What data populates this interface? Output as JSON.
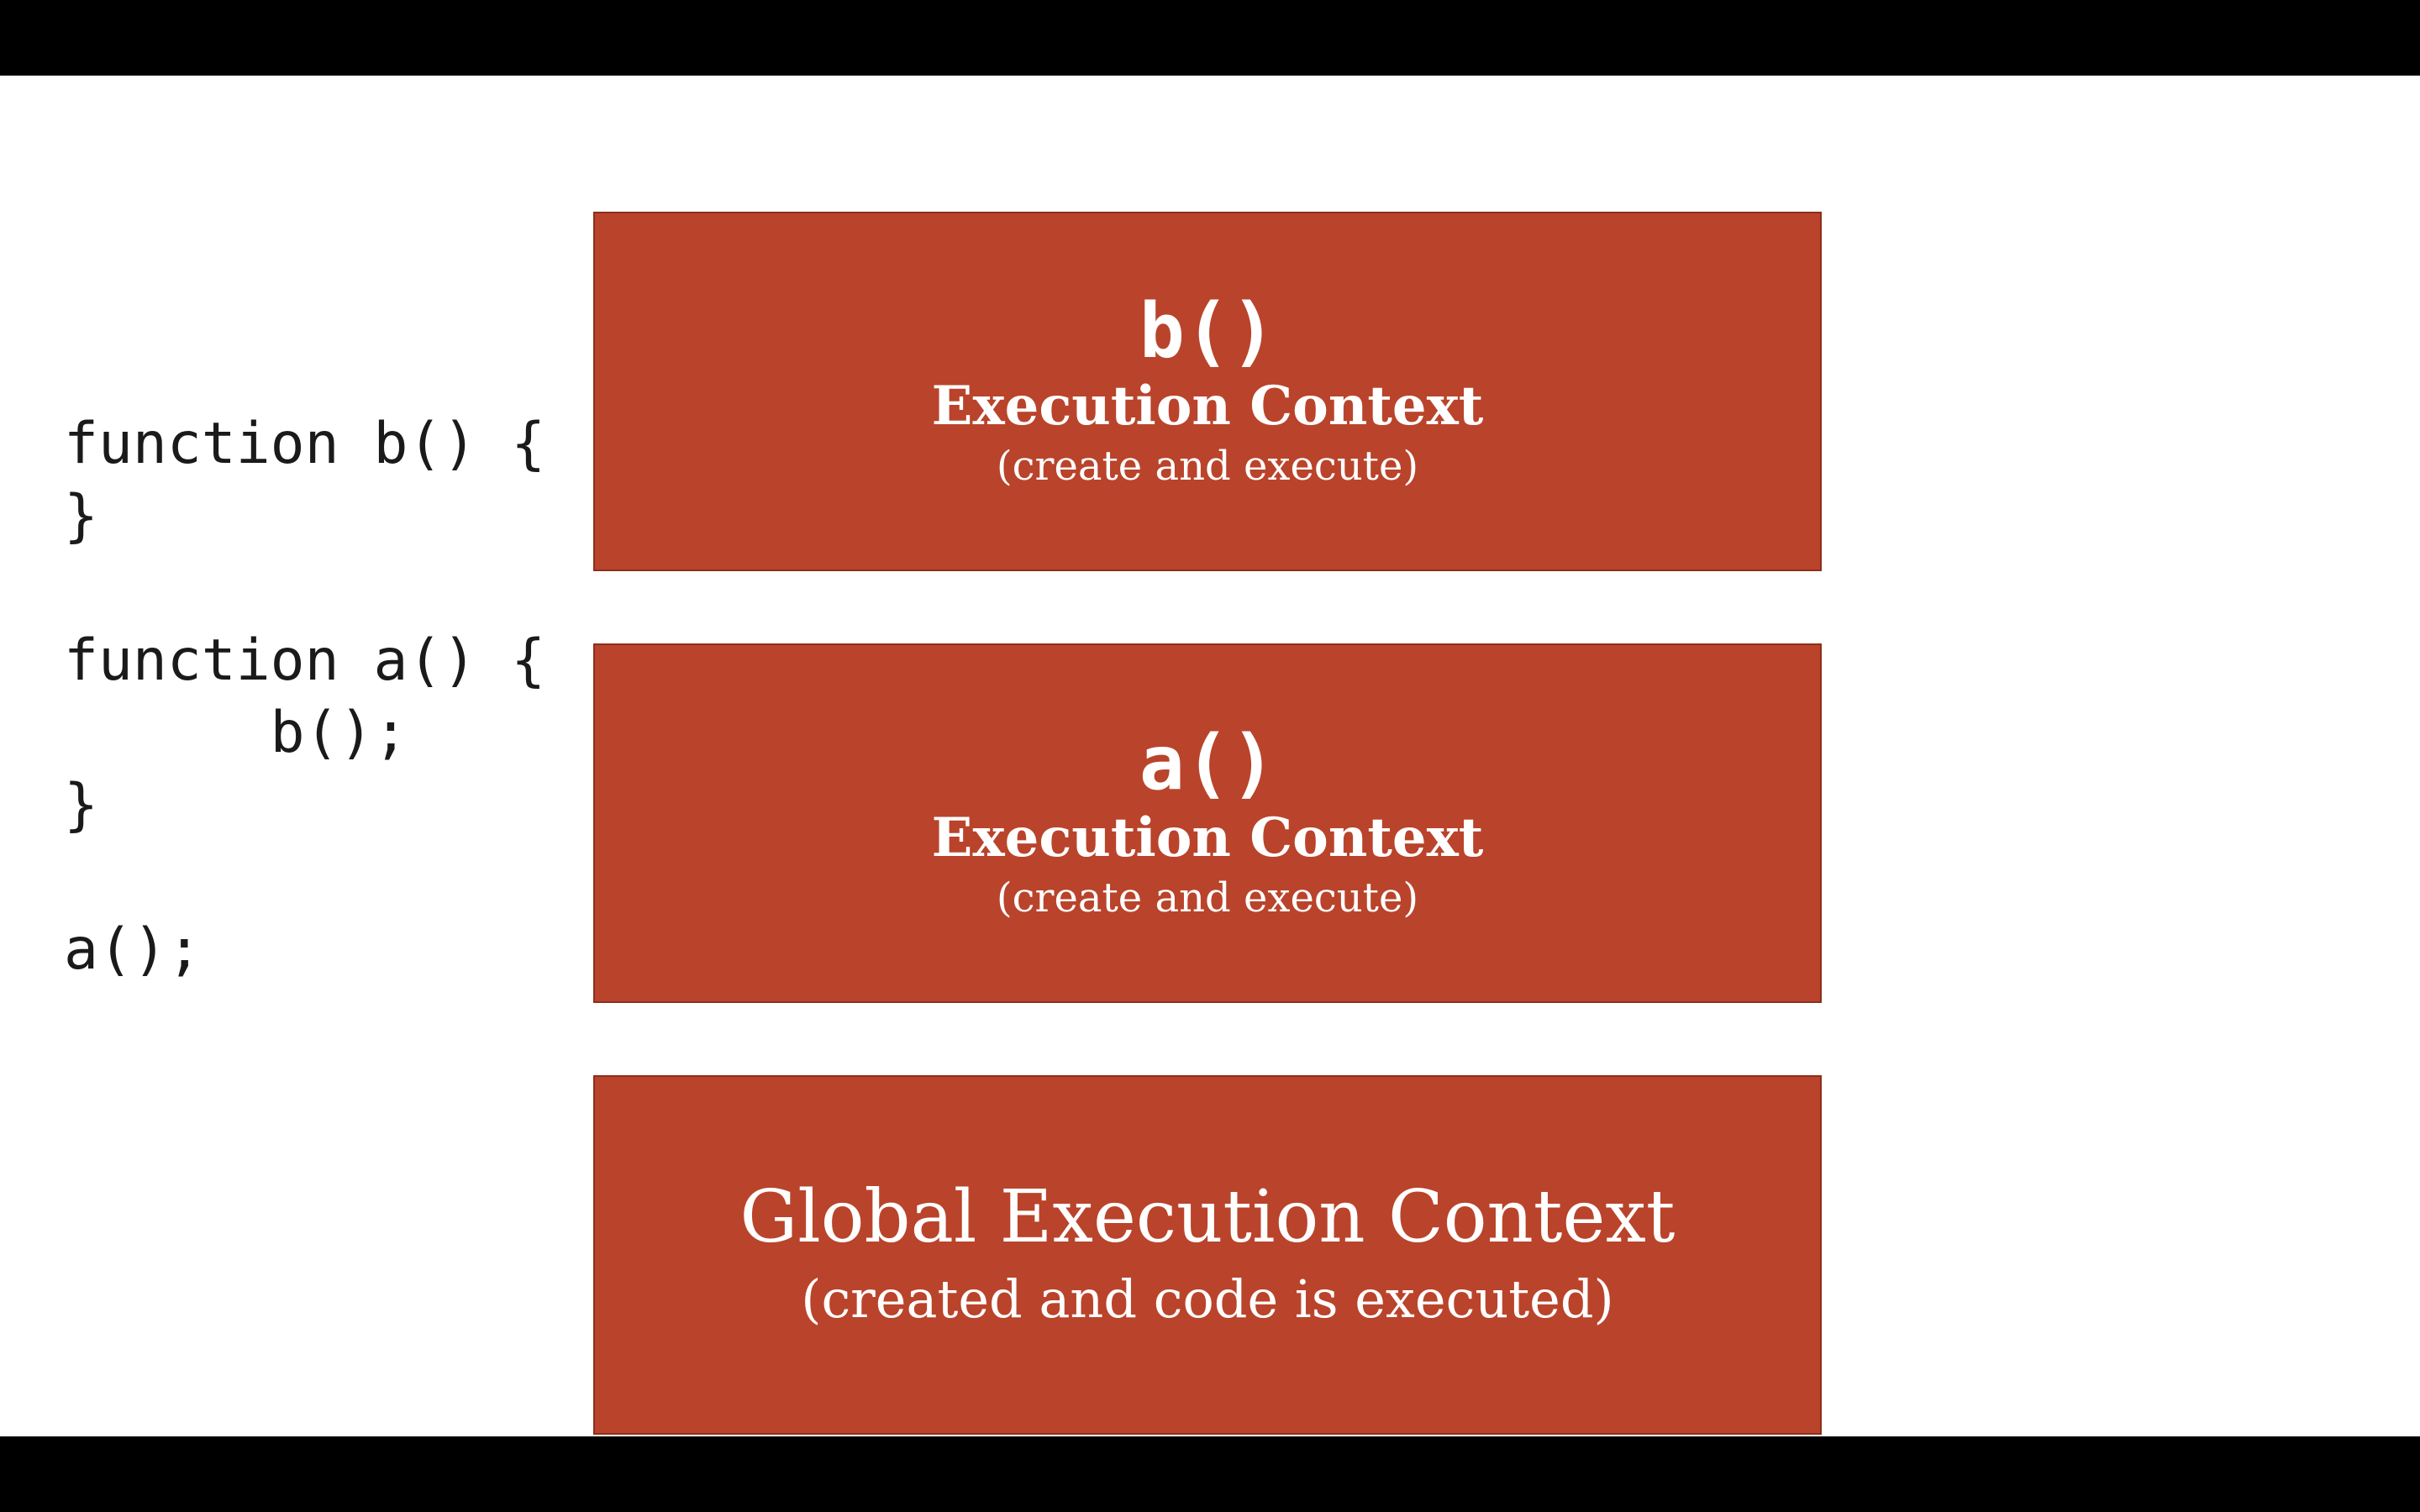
{
  "theme": {
    "box_color": "#b9442b",
    "slide_background": "#ffffff",
    "letterbox_color": "#000000",
    "code_color": "#1a1a1a"
  },
  "code": {
    "lines": [
      "function b() {",
      "}",
      "",
      "function a() {",
      "      b();",
      "}",
      "",
      "a();"
    ]
  },
  "stack": {
    "b_box": {
      "name": "b()",
      "label": "Execution Context",
      "note": "(create and execute)"
    },
    "a_box": {
      "name": "a()",
      "label": "Execution Context",
      "note": "(create and execute)"
    },
    "global_box": {
      "title": "Global Execution Context",
      "note": "(created and code is executed)"
    }
  }
}
